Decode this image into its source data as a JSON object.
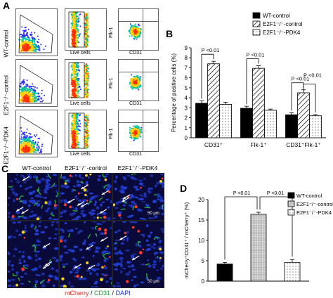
{
  "panels": {
    "a": "A",
    "b": "B",
    "c": "C",
    "d": "D"
  },
  "facs": {
    "rows": [
      "WT-control",
      "E2F1⁻/⁻-control",
      "E2F1⁻/⁻-PDK4"
    ],
    "live_cells_label": "Live cells",
    "cd31_label": "CD31",
    "flk1_label": "Flk-1",
    "colors": {
      "low": "#2a2aff",
      "mid": "#00c0a0",
      "high": "#ffd000",
      "peak": "#ff3000"
    }
  },
  "micro": {
    "columns": [
      "WT-control",
      "E2F1⁻/⁻-control",
      "E2F1⁻/⁻-PDK4"
    ],
    "scale_label": "50 μm",
    "stain_mcherry": "mCherry",
    "stain_cd31": "CD31",
    "stain_dapi": "DAPI",
    "sep": " / ",
    "colors": {
      "bg": "#0a0a3a",
      "nuclei": "#2340d8",
      "green": "#30d040",
      "red": "#ff3a2a",
      "yellow": "#f2d020"
    }
  },
  "chart_data": [
    {
      "type": "bar",
      "panel": "B",
      "ylabel": "Percentage of positive cells (%)",
      "ylim": [
        0,
        9
      ],
      "yticks": [
        0,
        1,
        2,
        3,
        4,
        5,
        6,
        7,
        8,
        9
      ],
      "categories": [
        "CD31⁺",
        "Flk-1⁺",
        "CD31⁺Flk-1⁺"
      ],
      "series": [
        {
          "name": "WT-control",
          "pattern": "solid",
          "values": [
            3.45,
            2.95,
            2.3
          ],
          "errors": [
            0.25,
            0.2,
            0.2
          ]
        },
        {
          "name": "E2F1⁻/⁻-control",
          "pattern": "hatch",
          "values": [
            7.4,
            6.95,
            4.5
          ],
          "errors": [
            0.25,
            0.25,
            0.3
          ]
        },
        {
          "name": "E2F1⁻/⁻-PDK4",
          "pattern": "dots",
          "values": [
            3.35,
            2.75,
            2.2
          ],
          "errors": [
            0.2,
            0.12,
            0.12
          ]
        }
      ],
      "significance": "P <0.01",
      "legend_position": "top-right"
    },
    {
      "type": "bar",
      "panel": "D",
      "ylabel": "mCherry⁺CD31⁺ / mCherry⁺ (%)",
      "ylim": [
        0,
        20
      ],
      "yticks": [
        0,
        5,
        10,
        15,
        20
      ],
      "categories": [
        "WT-control",
        "E2F1⁻/⁻-control",
        "E2F1⁻/⁻-PDK4"
      ],
      "series": [
        {
          "name": "values",
          "values": [
            4.2,
            16.4,
            4.6
          ],
          "errors": [
            0.4,
            0.5,
            0.7
          ],
          "patterns": [
            "solid",
            "dense-dots",
            "dots"
          ]
        }
      ],
      "significance": "P <0.01",
      "legend_position": "top-right"
    }
  ]
}
